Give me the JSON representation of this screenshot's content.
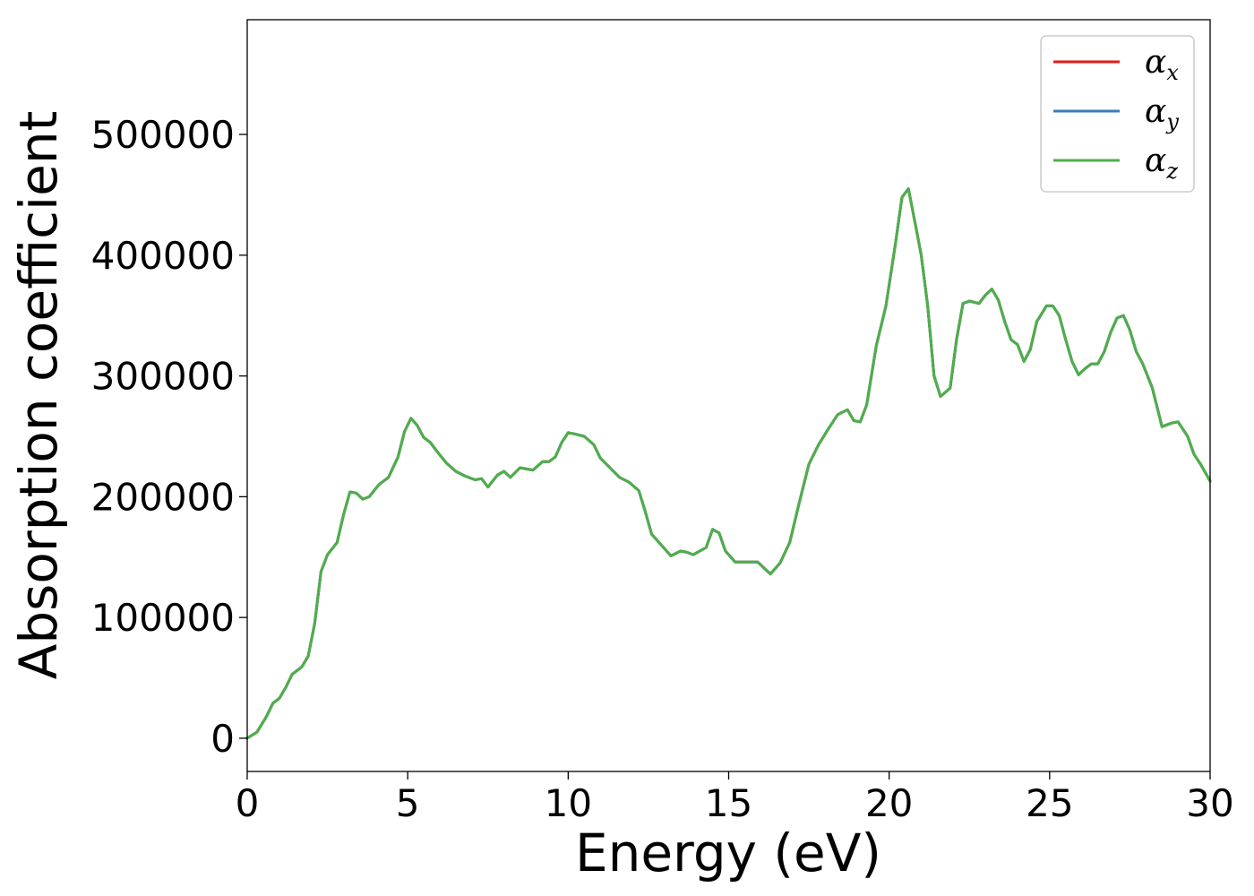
{
  "chart_data": {
    "type": "line",
    "title": "",
    "xlabel": "Energy (eV)",
    "ylabel": "Absorption coefficient",
    "xlim": [
      0,
      30
    ],
    "ylim": [
      -27500,
      595000
    ],
    "xticks": [
      "0",
      "5",
      "10",
      "15",
      "20",
      "25",
      "30"
    ],
    "yticks": [
      "0",
      "100000",
      "200000",
      "300000",
      "400000",
      "500000"
    ],
    "grid": false,
    "legend_position": "top-right",
    "x": [
      0,
      0.3,
      0.6,
      0.8,
      1.0,
      1.2,
      1.4,
      1.7,
      1.9,
      2.1,
      2.3,
      2.5,
      2.8,
      3.0,
      3.2,
      3.4,
      3.6,
      3.8,
      4.1,
      4.4,
      4.7,
      4.9,
      5.1,
      5.3,
      5.5,
      5.7,
      5.9,
      6.2,
      6.5,
      6.8,
      7.1,
      7.3,
      7.5,
      7.8,
      8.0,
      8.2,
      8.5,
      8.7,
      8.9,
      9.2,
      9.4,
      9.6,
      9.8,
      10.0,
      10.2,
      10.5,
      10.8,
      11.0,
      11.3,
      11.6,
      11.9,
      12.2,
      12.4,
      12.6,
      12.9,
      13.2,
      13.5,
      13.7,
      13.9,
      14.3,
      14.5,
      14.7,
      14.9,
      15.2,
      15.5,
      15.9,
      16.1,
      16.3,
      16.6,
      16.9,
      17.2,
      17.5,
      17.8,
      18.1,
      18.4,
      18.7,
      18.9,
      19.1,
      19.3,
      19.6,
      19.9,
      20.2,
      20.4,
      20.6,
      20.8,
      21.0,
      21.2,
      21.4,
      21.6,
      21.9,
      22.1,
      22.3,
      22.5,
      22.8,
      23.0,
      23.2,
      23.4,
      23.6,
      23.8,
      24.0,
      24.2,
      24.4,
      24.6,
      24.9,
      25.1,
      25.3,
      25.5,
      25.7,
      25.9,
      26.1,
      26.3,
      26.5,
      26.7,
      26.9,
      27.1,
      27.3,
      27.5,
      27.7,
      27.9,
      28.2,
      28.5,
      28.8,
      29.0,
      29.3,
      29.5,
      29.7,
      30.0
    ],
    "series": [
      {
        "name": "αx",
        "color": "#e41a1c",
        "values": [
          0,
          5000,
          18000,
          29000,
          33000,
          42000,
          53000,
          59000,
          68000,
          95000,
          138000,
          152000,
          162000,
          185000,
          204000,
          203000,
          198000,
          200000,
          210000,
          216000,
          233000,
          254000,
          265000,
          259000,
          249000,
          245000,
          238000,
          228000,
          221000,
          217000,
          214000,
          215000,
          208000,
          218000,
          221000,
          216000,
          224000,
          223000,
          222000,
          229000,
          229000,
          233000,
          245000,
          253000,
          252000,
          250000,
          243000,
          232000,
          224000,
          216000,
          212000,
          205000,
          188000,
          169000,
          160000,
          151000,
          155000,
          154000,
          152000,
          158000,
          173000,
          170000,
          155000,
          146000,
          146000,
          146000,
          141000,
          136000,
          145000,
          162000,
          195000,
          227000,
          243000,
          256000,
          268000,
          272000,
          263000,
          262000,
          276000,
          325000,
          358000,
          410000,
          448000,
          455000,
          428000,
          400000,
          358000,
          300000,
          283000,
          290000,
          330000,
          360000,
          362000,
          360000,
          367000,
          372000,
          363000,
          345000,
          330000,
          326000,
          312000,
          322000,
          345000,
          358000,
          358000,
          350000,
          330000,
          312000,
          301000,
          306000,
          310000,
          310000,
          320000,
          336000,
          348000,
          350000,
          338000,
          320000,
          310000,
          290000,
          258000,
          261000,
          262000,
          250000,
          235000,
          227000,
          213000
        ]
      },
      {
        "name": "αy",
        "color": "#377eb8",
        "values": [
          0,
          5000,
          18000,
          29000,
          33000,
          42000,
          53000,
          59000,
          68000,
          95000,
          138000,
          152000,
          162000,
          185000,
          204000,
          203000,
          198000,
          200000,
          210000,
          216000,
          233000,
          254000,
          265000,
          259000,
          249000,
          245000,
          238000,
          228000,
          221000,
          217000,
          214000,
          215000,
          208000,
          218000,
          221000,
          216000,
          224000,
          223000,
          222000,
          229000,
          229000,
          233000,
          245000,
          253000,
          252000,
          250000,
          243000,
          232000,
          224000,
          216000,
          212000,
          205000,
          188000,
          169000,
          160000,
          151000,
          155000,
          154000,
          152000,
          158000,
          173000,
          170000,
          155000,
          146000,
          146000,
          146000,
          141000,
          136000,
          145000,
          162000,
          195000,
          227000,
          243000,
          256000,
          268000,
          272000,
          263000,
          262000,
          276000,
          325000,
          358000,
          410000,
          448000,
          455000,
          428000,
          400000,
          358000,
          300000,
          283000,
          290000,
          330000,
          360000,
          362000,
          360000,
          367000,
          372000,
          363000,
          345000,
          330000,
          326000,
          312000,
          322000,
          345000,
          358000,
          358000,
          350000,
          330000,
          312000,
          301000,
          306000,
          310000,
          310000,
          320000,
          336000,
          348000,
          350000,
          338000,
          320000,
          310000,
          290000,
          258000,
          261000,
          262000,
          250000,
          235000,
          227000,
          213000
        ]
      },
      {
        "name": "αz",
        "color": "#4daf4a",
        "values": [
          0,
          5000,
          18000,
          29000,
          33000,
          42000,
          53000,
          59000,
          68000,
          95000,
          138000,
          152000,
          162000,
          185000,
          204000,
          203000,
          198000,
          200000,
          210000,
          216000,
          233000,
          254000,
          265000,
          259000,
          249000,
          245000,
          238000,
          228000,
          221000,
          217000,
          214000,
          215000,
          208000,
          218000,
          221000,
          216000,
          224000,
          223000,
          222000,
          229000,
          229000,
          233000,
          245000,
          253000,
          252000,
          250000,
          243000,
          232000,
          224000,
          216000,
          212000,
          205000,
          188000,
          169000,
          160000,
          151000,
          155000,
          154000,
          152000,
          158000,
          173000,
          170000,
          155000,
          146000,
          146000,
          146000,
          141000,
          136000,
          145000,
          162000,
          195000,
          227000,
          243000,
          256000,
          268000,
          272000,
          263000,
          262000,
          276000,
          325000,
          358000,
          410000,
          448000,
          455000,
          428000,
          400000,
          358000,
          300000,
          283000,
          290000,
          330000,
          360000,
          362000,
          360000,
          367000,
          372000,
          363000,
          345000,
          330000,
          326000,
          312000,
          322000,
          345000,
          358000,
          358000,
          350000,
          330000,
          312000,
          301000,
          306000,
          310000,
          310000,
          320000,
          336000,
          348000,
          350000,
          338000,
          320000,
          310000,
          290000,
          258000,
          261000,
          262000,
          250000,
          235000,
          227000,
          213000
        ]
      }
    ]
  },
  "legend": [
    {
      "symbol": "α",
      "sub": "x"
    },
    {
      "symbol": "α",
      "sub": "y"
    },
    {
      "symbol": "α",
      "sub": "z"
    }
  ]
}
